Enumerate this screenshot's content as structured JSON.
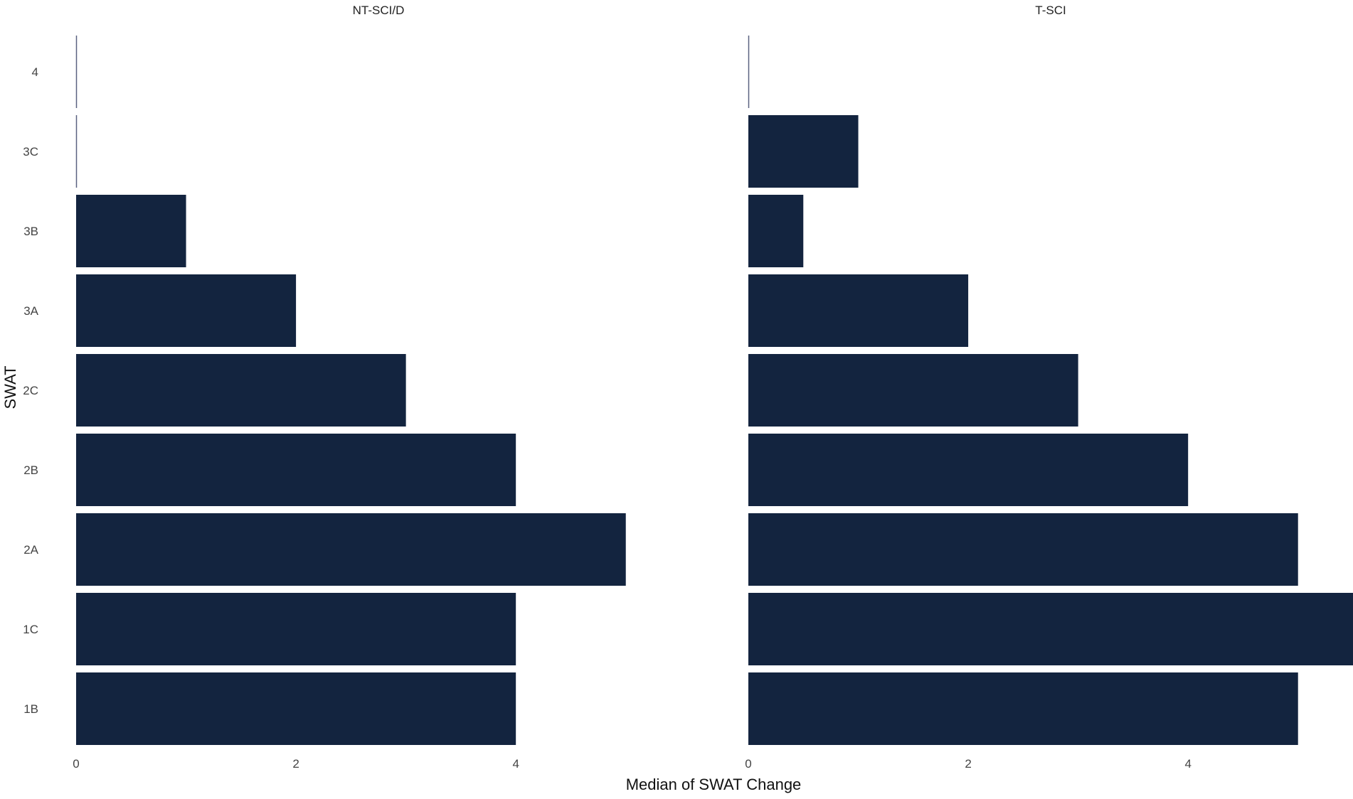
{
  "chart_data": {
    "type": "bar",
    "orientation": "horizontal",
    "title": "",
    "xlabel": "Median of SWAT Change",
    "ylabel": "SWAT",
    "categories": [
      "1B",
      "1C",
      "2A",
      "2B",
      "2C",
      "3A",
      "3B",
      "3C",
      "4"
    ],
    "grid": false,
    "bar_color": "#13243f",
    "panels": [
      {
        "name": "NT-SCI/D",
        "values": [
          4,
          4,
          5,
          4,
          3,
          2,
          1,
          0,
          0
        ],
        "xlim": [
          0,
          5.5
        ],
        "xticks": [
          0,
          2,
          4
        ]
      },
      {
        "name": "T-SCI",
        "values": [
          5,
          5.5,
          5,
          4,
          3,
          2,
          0.5,
          1,
          0
        ],
        "xlim": [
          0,
          5.5
        ],
        "xticks": [
          0,
          2,
          4
        ]
      }
    ]
  }
}
